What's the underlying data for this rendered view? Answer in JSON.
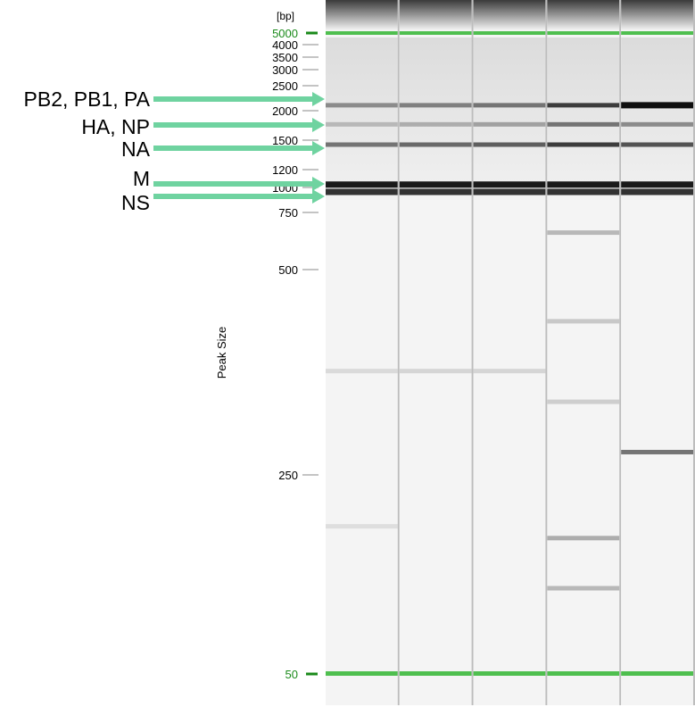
{
  "axis": {
    "unit": "[bp]",
    "title": "Peak Size",
    "ticks": [
      {
        "label": "5000",
        "marker": true
      },
      {
        "label": "4000",
        "marker": false
      },
      {
        "label": "3500",
        "marker": false
      },
      {
        "label": "3000",
        "marker": false
      },
      {
        "label": "2500",
        "marker": false
      },
      {
        "label": "2000",
        "marker": false
      },
      {
        "label": "1500",
        "marker": false
      },
      {
        "label": "1200",
        "marker": false
      },
      {
        "label": "1000",
        "marker": false
      },
      {
        "label": "750",
        "marker": false
      },
      {
        "label": "500",
        "marker": false
      },
      {
        "label": "250",
        "marker": false
      },
      {
        "label": "50",
        "marker": true
      }
    ]
  },
  "segments": [
    {
      "label": "PB2, PB1, PA"
    },
    {
      "label": "HA, NP"
    },
    {
      "label": "NA"
    },
    {
      "label": "M"
    },
    {
      "label": "NS"
    }
  ],
  "lanes": [
    {
      "bands": [
        {
          "bp": 2100,
          "intensity": 0.45
        },
        {
          "bp": 1750,
          "intensity": 0.25
        },
        {
          "bp": 1450,
          "intensity": 0.55
        },
        {
          "bp": 1030,
          "intensity": 0.95
        },
        {
          "bp": 950,
          "intensity": 0.85
        },
        {
          "bp": 355,
          "intensity": 0.1
        },
        {
          "bp": 165,
          "intensity": 0.08
        }
      ]
    },
    {
      "bands": [
        {
          "bp": 2100,
          "intensity": 0.5
        },
        {
          "bp": 1750,
          "intensity": 0.3
        },
        {
          "bp": 1450,
          "intensity": 0.6
        },
        {
          "bp": 1030,
          "intensity": 0.95
        },
        {
          "bp": 950,
          "intensity": 0.85
        },
        {
          "bp": 355,
          "intensity": 0.12
        }
      ]
    },
    {
      "bands": [
        {
          "bp": 2100,
          "intensity": 0.55
        },
        {
          "bp": 1750,
          "intensity": 0.35
        },
        {
          "bp": 1450,
          "intensity": 0.65
        },
        {
          "bp": 1030,
          "intensity": 0.95
        },
        {
          "bp": 950,
          "intensity": 0.85
        },
        {
          "bp": 355,
          "intensity": 0.12
        }
      ]
    },
    {
      "bands": [
        {
          "bp": 2100,
          "intensity": 0.8
        },
        {
          "bp": 1750,
          "intensity": 0.55
        },
        {
          "bp": 1450,
          "intensity": 0.8
        },
        {
          "bp": 1030,
          "intensity": 0.95
        },
        {
          "bp": 950,
          "intensity": 0.85
        },
        {
          "bp": 650,
          "intensity": 0.25
        },
        {
          "bp": 420,
          "intensity": 0.18
        },
        {
          "bp": 320,
          "intensity": 0.15
        },
        {
          "bp": 150,
          "intensity": 0.3
        },
        {
          "bp": 100,
          "intensity": 0.25
        }
      ]
    },
    {
      "bands": [
        {
          "bp": 2100,
          "intensity": 1.0
        },
        {
          "bp": 1750,
          "intensity": 0.45
        },
        {
          "bp": 1450,
          "intensity": 0.7
        },
        {
          "bp": 1030,
          "intensity": 0.95
        },
        {
          "bp": 950,
          "intensity": 0.85
        },
        {
          "bp": 270,
          "intensity": 0.55
        }
      ]
    }
  ],
  "colors": {
    "marker_band": "#4fbf4f",
    "arrow": "#6fd3a0",
    "marker_text": "#1a8a1a"
  }
}
